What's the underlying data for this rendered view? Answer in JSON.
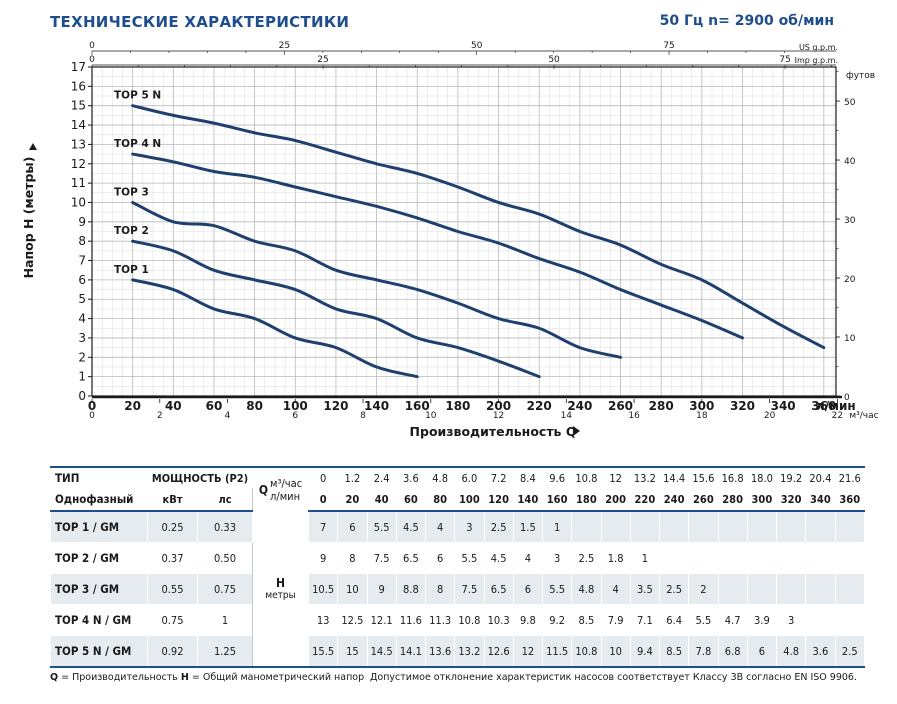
{
  "header": {
    "title": "ТЕХНИЧЕСКИЕ ХАРАКТЕРИСТИКИ",
    "spec": "50 Гц n= 2900 об/мин"
  },
  "chart_data": {
    "type": "line",
    "ylabel": "Напор H (метры)",
    "xlabel": "Производительность Q",
    "x_unit_bottom": "л/мин",
    "x_unit_secondary": "м³/час",
    "y_unit_right": "футов",
    "top_axis_us_label": "US g.p.m.",
    "top_axis_imp_label": "Imp g.p.m.",
    "xlim": [
      0,
      366
    ],
    "ylim": [
      0,
      17
    ],
    "x_ticks": [
      20,
      40,
      60,
      80,
      100,
      120,
      140,
      160,
      180,
      200,
      220,
      240,
      260,
      280,
      300,
      320,
      340,
      360
    ],
    "x_tick_labels": [
      "20",
      "40",
      "60",
      "80",
      "100",
      "120",
      "140",
      "160",
      "180",
      "200",
      "220",
      "240",
      "260",
      "280",
      "300",
      "320",
      "340",
      "360"
    ],
    "y_ticks": [
      0,
      1,
      2,
      3,
      4,
      5,
      6,
      7,
      8,
      9,
      10,
      11,
      12,
      13,
      14,
      15,
      16,
      17
    ],
    "y_tick_labels": [
      "0",
      "1",
      "2",
      "3",
      "4",
      "5",
      "6",
      "7",
      "8",
      "9",
      "10",
      "11",
      "12",
      "13",
      "14",
      "15",
      "16",
      "17"
    ],
    "m3h_ticks": [
      0,
      2,
      4,
      6,
      8,
      10,
      12,
      14,
      16,
      18,
      20,
      22
    ],
    "m3h_tick_labels": [
      "0",
      "2",
      "4",
      "6",
      "8",
      "10",
      "12",
      "14",
      "16",
      "18",
      "20",
      "22"
    ],
    "us_gpm_ticks": [
      0,
      25,
      50,
      75
    ],
    "us_gpm_tick_labels": [
      "0",
      "25",
      "50",
      "75"
    ],
    "imp_gpm_ticks": [
      0,
      25,
      50,
      75
    ],
    "imp_gpm_tick_labels": [
      "0",
      "25",
      "50",
      "75"
    ],
    "feet_ticks": [
      0,
      10,
      20,
      30,
      40,
      50
    ],
    "feet_tick_labels": [
      "0",
      "10",
      "20",
      "30",
      "40",
      "50"
    ],
    "grid": true,
    "series": [
      {
        "name": "TOP 1",
        "x": [
          20,
          40,
          60,
          80,
          100,
          120,
          140,
          160
        ],
        "y": [
          6,
          5.5,
          4.5,
          4,
          3,
          2.5,
          1.5,
          1
        ]
      },
      {
        "name": "TOP 2",
        "x": [
          20,
          40,
          60,
          80,
          100,
          120,
          140,
          160,
          180,
          200,
          220
        ],
        "y": [
          8,
          7.5,
          6.5,
          6,
          5.5,
          4.5,
          4,
          3,
          2.5,
          1.8,
          1
        ]
      },
      {
        "name": "TOP 3",
        "x": [
          20,
          40,
          60,
          80,
          100,
          120,
          140,
          160,
          180,
          200,
          220,
          240,
          260
        ],
        "y": [
          10,
          9,
          8.8,
          8,
          7.5,
          6.5,
          6,
          5.5,
          4.8,
          4,
          3.5,
          2.5,
          2
        ]
      },
      {
        "name": "TOP 4 N",
        "x": [
          20,
          40,
          60,
          80,
          100,
          120,
          140,
          160,
          180,
          200,
          220,
          240,
          260,
          280,
          300,
          320
        ],
        "y": [
          12.5,
          12.1,
          11.6,
          11.3,
          10.8,
          10.3,
          9.8,
          9.2,
          8.5,
          7.9,
          7.1,
          6.4,
          5.5,
          4.7,
          3.9,
          3
        ]
      },
      {
        "name": "TOP 5 N",
        "x": [
          20,
          40,
          60,
          80,
          100,
          120,
          140,
          160,
          180,
          200,
          220,
          240,
          260,
          280,
          300,
          320,
          340,
          360
        ],
        "y": [
          15,
          14.5,
          14.1,
          13.6,
          13.2,
          12.6,
          12,
          11.5,
          10.8,
          10,
          9.4,
          8.5,
          7.8,
          6.8,
          6,
          4.8,
          3.6,
          2.5
        ]
      }
    ],
    "line_color": "#1f3f6e"
  },
  "table": {
    "col_type": "ТИП",
    "col_power": "МОЩНОСТЬ (P2)",
    "unit_m3h": "м³/час",
    "unit_lmin": "л/мин",
    "q_label": "Q",
    "subhdr_type": "Однофазный",
    "subhdr_kw": "кВт",
    "subhdr_hp": "лс",
    "h_label": "H",
    "h_unit": "метры",
    "q_m3h": [
      "0",
      "1.2",
      "2.4",
      "3.6",
      "4.8",
      "6.0",
      "7.2",
      "8.4",
      "9.6",
      "10.8",
      "12",
      "13.2",
      "14.4",
      "15.6",
      "16.8",
      "18.0",
      "19.2",
      "20.4",
      "21.6"
    ],
    "q_lmin": [
      "0",
      "20",
      "40",
      "60",
      "80",
      "100",
      "120",
      "140",
      "160",
      "180",
      "200",
      "220",
      "240",
      "260",
      "280",
      "300",
      "320",
      "340",
      "360"
    ],
    "rows": [
      {
        "name": "TOP 1 / GM",
        "kw": "0.25",
        "hp": "0.33",
        "h": [
          "7",
          "6",
          "5.5",
          "4.5",
          "4",
          "3",
          "2.5",
          "1.5",
          "1",
          "",
          "",
          "",
          "",
          "",
          "",
          "",
          "",
          "",
          ""
        ]
      },
      {
        "name": "TOP 2 / GM",
        "kw": "0.37",
        "hp": "0.50",
        "h": [
          "9",
          "8",
          "7.5",
          "6.5",
          "6",
          "5.5",
          "4.5",
          "4",
          "3",
          "2.5",
          "1.8",
          "1",
          "",
          "",
          "",
          "",
          "",
          "",
          ""
        ]
      },
      {
        "name": "TOP 3 / GM",
        "kw": "0.55",
        "hp": "0.75",
        "h": [
          "10.5",
          "10",
          "9",
          "8.8",
          "8",
          "7.5",
          "6.5",
          "6",
          "5.5",
          "4.8",
          "4",
          "3.5",
          "2.5",
          "2",
          "",
          "",
          "",
          "",
          ""
        ]
      },
      {
        "name": "TOP 4 N / GM",
        "kw": "0.75",
        "hp": "1",
        "h": [
          "13",
          "12.5",
          "12.1",
          "11.6",
          "11.3",
          "10.8",
          "10.3",
          "9.8",
          "9.2",
          "8.5",
          "7.9",
          "7.1",
          "6.4",
          "5.5",
          "4.7",
          "3.9",
          "3",
          "",
          ""
        ]
      },
      {
        "name": "TOP 5 N / GM",
        "kw": "0.92",
        "hp": "1.25",
        "h": [
          "15.5",
          "15",
          "14.5",
          "14.1",
          "13.6",
          "13.2",
          "12.6",
          "12",
          "11.5",
          "10.8",
          "10",
          "9.4",
          "8.5",
          "7.8",
          "6.8",
          "6",
          "4.8",
          "3.6",
          "2.5"
        ]
      }
    ]
  },
  "footnote": {
    "q_key": "Q",
    "q_text": " = Производительность  ",
    "h_key": "H",
    "h_text": " = Общий манометрический напор",
    "tolerance": "Допустимое отклонение характеристик насосов соответствует Классу 3B согласно EN ISO 9906."
  }
}
